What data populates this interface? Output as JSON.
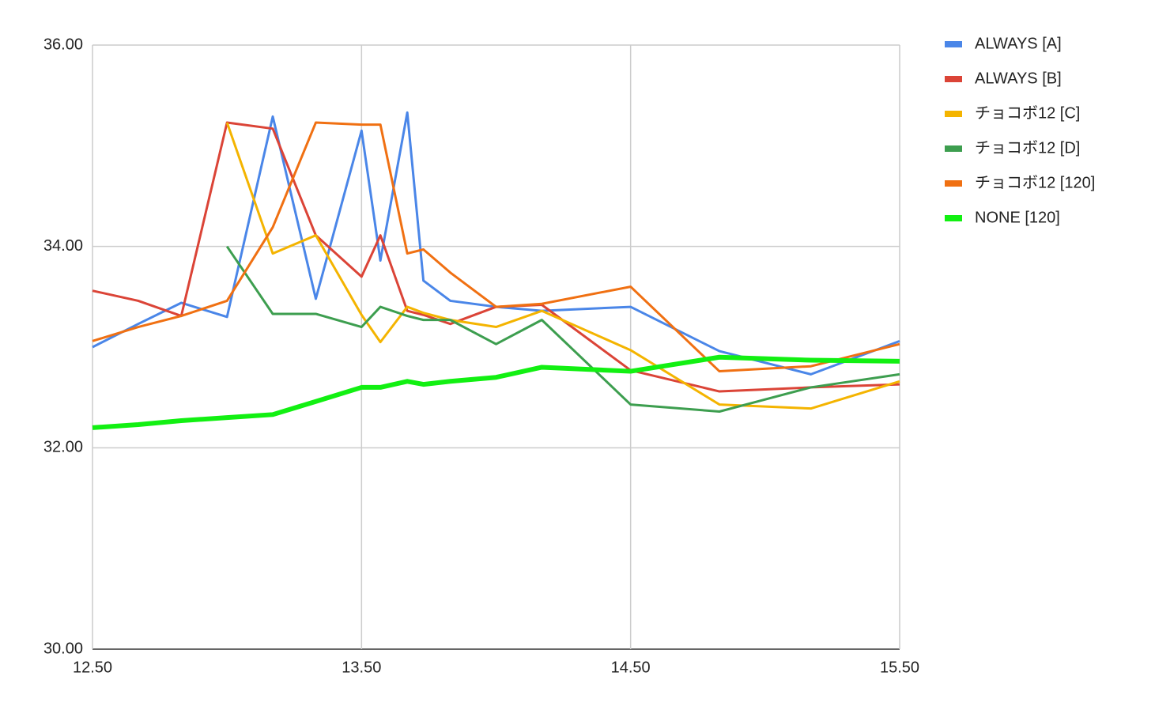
{
  "chart_data": {
    "type": "line",
    "x": [
      12.5,
      12.67,
      12.83,
      13.0,
      13.17,
      13.33,
      13.5,
      13.57,
      13.67,
      13.73,
      13.83,
      14.0,
      14.17,
      14.5,
      14.83,
      15.17,
      15.5
    ],
    "series": [
      {
        "name": "ALWAYS [A]",
        "color": "#4a86e8",
        "width": 3,
        "values": [
          33.0,
          33.23,
          33.44,
          33.3,
          35.29,
          33.48,
          35.15,
          33.86,
          35.33,
          33.66,
          33.46,
          33.4,
          33.36,
          33.4,
          32.96,
          32.73,
          33.06
        ]
      },
      {
        "name": "ALWAYS [B]",
        "color": "#db4437",
        "width": 3,
        "values": [
          33.56,
          33.46,
          33.31,
          35.23,
          35.17,
          34.11,
          33.7,
          34.11,
          33.36,
          33.32,
          33.23,
          33.4,
          33.42,
          32.77,
          32.56,
          32.6,
          32.63
        ]
      },
      {
        "name": "チョコボ12 [C]",
        "color": "#f4b400",
        "width": 3,
        "values": [
          null,
          null,
          null,
          35.23,
          33.93,
          34.11,
          33.32,
          33.05,
          33.4,
          33.34,
          33.27,
          33.2,
          33.36,
          32.97,
          32.43,
          32.39,
          32.66
        ]
      },
      {
        "name": "チョコボ12 [D]",
        "color": "#3d9e4f",
        "width": 3,
        "values": [
          null,
          null,
          null,
          34.0,
          33.33,
          33.33,
          33.2,
          33.4,
          33.31,
          33.27,
          33.27,
          33.03,
          33.27,
          32.43,
          32.36,
          32.6,
          32.73
        ]
      },
      {
        "name": "チョコボ12 [120]",
        "color": "#f07012",
        "width": 3,
        "values": [
          33.06,
          33.2,
          33.31,
          33.46,
          34.19,
          35.23,
          35.21,
          35.21,
          33.93,
          33.97,
          33.74,
          33.4,
          33.43,
          33.6,
          32.76,
          32.81,
          33.03
        ]
      },
      {
        "name": "NONE [120]",
        "color": "#12f012",
        "width": 6,
        "values": [
          32.2,
          32.23,
          32.27,
          32.3,
          32.33,
          32.46,
          32.6,
          32.6,
          32.66,
          32.63,
          32.66,
          32.7,
          32.8,
          32.76,
          32.9,
          32.87,
          32.86
        ]
      }
    ],
    "xlim": [
      12.5,
      15.5
    ],
    "xticks": [
      {
        "value": 12.5,
        "label": "12.50"
      },
      {
        "value": 13.5,
        "label": "13.50"
      },
      {
        "value": 14.5,
        "label": "14.50"
      },
      {
        "value": 15.5,
        "label": "15.50"
      }
    ],
    "ylim": [
      30,
      36
    ],
    "yticks": [
      {
        "value": 30,
        "label": "30.00"
      },
      {
        "value": 32,
        "label": "32.00"
      },
      {
        "value": 34,
        "label": "34.00"
      },
      {
        "value": 36,
        "label": "36.00"
      }
    ],
    "grid": true,
    "legend": "right"
  }
}
